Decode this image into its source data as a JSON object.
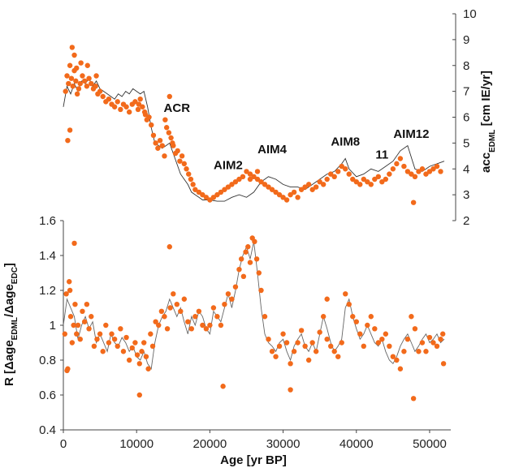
{
  "chart_data": [
    {
      "type": "scatter",
      "title": "",
      "xlabel": "",
      "ylabel": "acc_EDML [cm IE/yr]",
      "ylabel_main": "acc",
      "ylabel_sub": "EDML",
      "ylabel_unit": "[cm IE/yr]",
      "xlim": [
        0,
        52000
      ],
      "ylim": [
        2,
        10
      ],
      "y_ticks": [
        2,
        3,
        4,
        5,
        6,
        7,
        8,
        9,
        10
      ],
      "y_axis_side": "right",
      "grid": false,
      "colors": {
        "points": "#f26a1b",
        "line": "#333333"
      },
      "annotations": [
        {
          "text": "ACR",
          "x": 15500,
          "y": 6.2
        },
        {
          "text": "AIM2",
          "x": 22500,
          "y": 4.0
        },
        {
          "text": "AIM4",
          "x": 28500,
          "y": 4.6
        },
        {
          "text": "AIM8",
          "x": 38500,
          "y": 4.9
        },
        {
          "text": "11",
          "x": 43500,
          "y": 4.4
        },
        {
          "text": "AIM12",
          "x": 47500,
          "y": 5.2
        }
      ],
      "series": [
        {
          "kind": "scatter",
          "x": [
            300,
            500,
            700,
            900,
            1100,
            1300,
            1500,
            1700,
            1900,
            2100,
            2300,
            2600,
            2900,
            3200,
            3500,
            3800,
            4100,
            4400,
            4700,
            5000,
            5400,
            5800,
            6200,
            6600,
            7000,
            7400,
            7800,
            8200,
            8600,
            9000,
            9400,
            9800,
            10200,
            10500,
            10800,
            11100,
            11400,
            11700,
            12000,
            12300,
            12600,
            12900,
            13200,
            13500,
            13800,
            14100,
            14400,
            14700,
            15000,
            15300,
            15600,
            15900,
            16200,
            16500,
            16800,
            17100,
            17400,
            17700,
            18000,
            18500,
            19000,
            19500,
            20000,
            20500,
            21000,
            21500,
            22000,
            22500,
            23000,
            23500,
            24000,
            24500,
            25000,
            25500,
            26000,
            26500,
            27000,
            27500,
            28000,
            28500,
            29000,
            29500,
            30000,
            30500,
            31000,
            31500,
            32000,
            32500,
            33000,
            33500,
            34000,
            34500,
            35000,
            35500,
            36000,
            36500,
            37000,
            37500,
            38000,
            38500,
            39000,
            39500,
            40000,
            40500,
            41000,
            41500,
            42000,
            42500,
            43000,
            43500,
            44000,
            44500,
            45000,
            45500,
            46000,
            46500,
            47000,
            47500,
            48000,
            48500,
            49000,
            49500,
            50000,
            50500,
            51000,
            51500,
            600,
            900,
            1200,
            1500,
            1800,
            2400,
            3300,
            4500,
            10300,
            11200,
            14500,
            14900,
            13900,
            25500,
            26500,
            47800
          ],
          "y": [
            7.0,
            7.6,
            7.3,
            8.0,
            7.5,
            7.2,
            7.8,
            7.4,
            6.9,
            7.1,
            7.3,
            7.6,
            7.4,
            7.2,
            7.5,
            7.3,
            7.1,
            7.2,
            6.9,
            7.0,
            6.8,
            6.6,
            6.7,
            6.5,
            6.4,
            6.6,
            6.3,
            6.5,
            6.4,
            6.2,
            6.5,
            6.6,
            6.3,
            6.7,
            6.4,
            6.2,
            5.9,
            6.0,
            5.7,
            5.3,
            5.0,
            4.8,
            5.1,
            4.9,
            4.5,
            5.6,
            5.4,
            5.2,
            4.9,
            4.6,
            4.7,
            4.3,
            4.5,
            4.2,
            4.0,
            3.8,
            3.6,
            3.4,
            3.2,
            3.1,
            3.0,
            2.9,
            2.8,
            2.9,
            3.0,
            3.1,
            3.2,
            3.3,
            3.4,
            3.5,
            3.6,
            3.7,
            3.9,
            3.8,
            3.7,
            3.6,
            3.5,
            3.4,
            3.3,
            3.2,
            3.1,
            3.0,
            2.9,
            2.8,
            3.0,
            3.1,
            2.9,
            3.2,
            3.3,
            3.4,
            3.2,
            3.3,
            3.5,
            3.4,
            3.6,
            3.8,
            3.7,
            3.9,
            4.1,
            4.0,
            3.8,
            3.6,
            3.5,
            3.4,
            3.6,
            3.5,
            3.4,
            3.6,
            3.7,
            3.5,
            3.6,
            3.8,
            4.0,
            4.2,
            4.4,
            4.1,
            3.9,
            3.8,
            3.7,
            3.9,
            4.0,
            3.8,
            3.9,
            4.0,
            4.1,
            3.9,
            5.1,
            5.5,
            8.7,
            8.4,
            7.9,
            8.1,
            8.0,
            7.6,
            6.5,
            6.1,
            6.8,
            5.0,
            5.9,
            3.6,
            3.9,
            2.7
          ]
        },
        {
          "kind": "line",
          "x": [
            0,
            500,
            1000,
            1500,
            2000,
            2500,
            3000,
            3500,
            4000,
            4500,
            5000,
            5500,
            6000,
            6500,
            7000,
            7500,
            8000,
            8500,
            9000,
            9500,
            10000,
            10500,
            11000,
            11500,
            12000,
            12500,
            13000,
            13500,
            14000,
            14500,
            15000,
            15500,
            16000,
            16500,
            17000,
            17500,
            18000,
            18500,
            19000,
            19500,
            20000,
            21000,
            22000,
            23000,
            24000,
            25000,
            26000,
            27000,
            28000,
            29000,
            30000,
            31000,
            32000,
            33000,
            34000,
            35000,
            36000,
            37000,
            38000,
            38500,
            39000,
            40000,
            41000,
            42000,
            43000,
            44000,
            45000,
            46000,
            47000,
            48000,
            49000,
            50000,
            51000,
            52000
          ],
          "y": [
            6.4,
            7.2,
            6.9,
            7.3,
            7.0,
            7.4,
            7.3,
            7.5,
            7.2,
            7.4,
            7.1,
            7.0,
            6.9,
            6.8,
            6.7,
            6.9,
            6.8,
            7.0,
            6.9,
            7.1,
            7.0,
            6.9,
            7.0,
            6.4,
            5.6,
            5.0,
            4.9,
            4.8,
            4.9,
            5.0,
            4.6,
            4.2,
            3.8,
            3.6,
            3.4,
            3.1,
            3.0,
            2.9,
            2.8,
            2.8,
            2.8,
            2.75,
            2.75,
            2.9,
            3.0,
            2.9,
            3.1,
            3.5,
            3.7,
            3.6,
            3.4,
            3.3,
            3.3,
            3.2,
            3.4,
            3.6,
            3.8,
            3.9,
            4.2,
            4.4,
            4.0,
            3.7,
            3.8,
            4.0,
            3.9,
            4.1,
            4.3,
            4.7,
            4.9,
            4.0,
            3.9,
            4.1,
            4.2,
            4.3
          ]
        }
      ]
    },
    {
      "type": "scatter",
      "title": "",
      "xlabel": "Age [yr BP]",
      "ylabel": "R [Δage_EDML/Δage_EDC]",
      "ylabel_parts": [
        "R [Δage",
        "EDML",
        "/Δage",
        "EDC",
        "]"
      ],
      "xlim": [
        0,
        52000
      ],
      "ylim": [
        0.4,
        1.6
      ],
      "x_ticks": [
        0,
        10000,
        20000,
        30000,
        40000,
        50000
      ],
      "y_ticks": [
        0.4,
        0.6,
        0.8,
        1.0,
        1.2,
        1.4,
        1.6
      ],
      "y_tick_labels": [
        "0.4",
        "0.6",
        "0.8",
        "1",
        "1.2",
        "1.4",
        "1.6"
      ],
      "grid": false,
      "colors": {
        "points": "#f26a1b",
        "line": "#666666"
      },
      "series": [
        {
          "kind": "scatter",
          "x": [
            200,
            400,
            600,
            800,
            1000,
            1200,
            1400,
            1600,
            1800,
            2000,
            2300,
            2600,
            2900,
            3200,
            3500,
            3800,
            4200,
            4600,
            5000,
            5400,
            5800,
            6200,
            6600,
            7000,
            7400,
            7800,
            8200,
            8600,
            9000,
            9400,
            9800,
            10100,
            10400,
            10700,
            11000,
            11300,
            11600,
            11900,
            12200,
            12600,
            13000,
            13400,
            13800,
            14200,
            14600,
            15000,
            15500,
            16000,
            16500,
            17000,
            17500,
            18000,
            18500,
            19000,
            19500,
            20000,
            20500,
            21000,
            21500,
            22000,
            22500,
            23000,
            23500,
            24000,
            24300,
            24600,
            24900,
            25200,
            25500,
            25800,
            26100,
            26400,
            26700,
            27000,
            27500,
            28000,
            28500,
            29000,
            29500,
            30000,
            30500,
            31000,
            31500,
            32000,
            32500,
            33000,
            33500,
            34000,
            34500,
            35000,
            35500,
            36000,
            36500,
            37000,
            37500,
            38000,
            38500,
            39000,
            39500,
            40000,
            40500,
            41000,
            41500,
            42000,
            42500,
            43000,
            43500,
            44000,
            44500,
            45000,
            45500,
            46000,
            46500,
            47000,
            47500,
            48000,
            48500,
            49000,
            49500,
            50000,
            50500,
            51000,
            51500,
            51800,
            500,
            900,
            1500,
            10400,
            14500,
            21800,
            31000,
            36000,
            47800,
            51900
          ],
          "y": [
            0.95,
            1.18,
            0.75,
            1.25,
            1.05,
            0.9,
            1.0,
            1.12,
            0.95,
            1.0,
            0.92,
            1.08,
            1.02,
            1.12,
            0.98,
            1.05,
            0.88,
            0.92,
            0.95,
            0.85,
            1.0,
            0.9,
            0.95,
            0.92,
            0.88,
            0.98,
            0.85,
            0.93,
            0.8,
            0.87,
            0.9,
            0.83,
            0.78,
            0.85,
            0.9,
            0.82,
            0.75,
            0.95,
            0.88,
            1.02,
            1.0,
            1.08,
            1.05,
            0.98,
            1.1,
            1.18,
            1.12,
            1.08,
            1.15,
            1.02,
            0.98,
            1.05,
            1.08,
            1.0,
            0.98,
            1.0,
            1.1,
            1.05,
            1.0,
            1.12,
            1.18,
            1.15,
            1.22,
            1.32,
            1.38,
            1.28,
            1.42,
            1.45,
            1.36,
            1.5,
            1.48,
            1.38,
            1.3,
            1.2,
            1.05,
            0.92,
            0.85,
            0.82,
            0.88,
            0.95,
            0.9,
            0.78,
            0.85,
            0.9,
            0.97,
            0.88,
            0.8,
            0.9,
            0.85,
            0.96,
            1.05,
            0.92,
            0.88,
            0.85,
            0.82,
            0.9,
            1.18,
            1.12,
            1.05,
            1.02,
            0.95,
            0.88,
            1.0,
            1.05,
            0.98,
            0.9,
            0.92,
            0.95,
            0.88,
            0.82,
            0.8,
            0.75,
            0.85,
            0.92,
            1.05,
            0.98,
            0.85,
            0.9,
            0.85,
            0.93,
            0.9,
            0.88,
            0.92,
            0.95,
            0.74,
            1.2,
            1.47,
            0.6,
            1.45,
            0.65,
            0.63,
            1.15,
            0.58,
            0.78
          ]
        },
        {
          "kind": "line",
          "x": [
            0,
            500,
            1000,
            1500,
            2000,
            2500,
            3000,
            3500,
            4000,
            4500,
            5000,
            5500,
            6000,
            6500,
            7000,
            7500,
            8000,
            8500,
            9000,
            9500,
            10000,
            10500,
            11000,
            11500,
            12000,
            12500,
            13000,
            13500,
            14000,
            14500,
            15000,
            15500,
            16000,
            16500,
            17000,
            17500,
            18000,
            18500,
            19000,
            19500,
            20000,
            20500,
            21000,
            21500,
            22000,
            22500,
            23000,
            23500,
            24000,
            24500,
            25000,
            25500,
            26000,
            26500,
            27000,
            27500,
            28000,
            28500,
            29000,
            29500,
            30000,
            30500,
            31000,
            31500,
            32000,
            32500,
            33000,
            33500,
            34000,
            34500,
            35000,
            35500,
            36000,
            36500,
            37000,
            37500,
            38000,
            38500,
            39000,
            39500,
            40000,
            40500,
            41000,
            41500,
            42000,
            42500,
            43000,
            43500,
            44000,
            44500,
            45000,
            45500,
            46000,
            46500,
            47000,
            47500,
            48000,
            48500,
            49000,
            49500,
            50000,
            50500,
            51000,
            51500,
            52000
          ],
          "y": [
            1.0,
            1.15,
            1.1,
            1.05,
            0.92,
            1.0,
            1.05,
            0.98,
            1.02,
            0.9,
            0.95,
            0.9,
            0.85,
            0.95,
            0.9,
            0.88,
            0.93,
            0.9,
            0.85,
            0.88,
            0.82,
            0.8,
            0.85,
            0.78,
            0.75,
            0.9,
            1.0,
            1.05,
            1.08,
            1.15,
            1.1,
            1.05,
            1.1,
            1.02,
            0.95,
            1.05,
            1.0,
            1.08,
            1.05,
            0.98,
            0.95,
            1.08,
            1.05,
            1.02,
            1.1,
            1.18,
            1.1,
            1.2,
            1.32,
            1.4,
            1.45,
            1.38,
            1.48,
            1.3,
            1.1,
            0.95,
            0.9,
            0.88,
            0.85,
            0.9,
            0.92,
            0.85,
            0.8,
            0.88,
            0.92,
            0.95,
            0.88,
            0.85,
            0.9,
            0.85,
            0.95,
            1.05,
            0.98,
            0.9,
            0.85,
            0.88,
            0.92,
            1.1,
            1.15,
            1.05,
            0.98,
            0.92,
            0.95,
            1.0,
            0.95,
            0.9,
            0.88,
            0.92,
            0.85,
            0.8,
            0.78,
            0.82,
            0.88,
            0.92,
            0.95,
            0.9,
            0.85,
            0.88,
            0.92,
            0.95,
            0.9,
            0.92,
            0.95,
            0.9,
            0.92
          ]
        }
      ]
    }
  ]
}
